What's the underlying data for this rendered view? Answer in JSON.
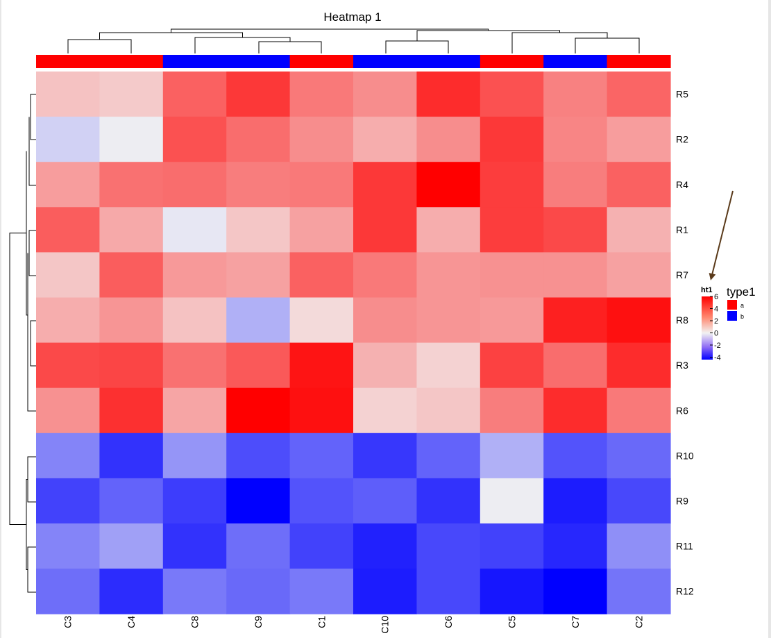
{
  "chart_data": {
    "type": "heatmap",
    "title": "Heatmap 1",
    "columns": [
      "C3",
      "C4",
      "C8",
      "C9",
      "C1",
      "C10",
      "C6",
      "C5",
      "C7",
      "C2"
    ],
    "rows": [
      "R5",
      "R2",
      "R4",
      "R1",
      "R7",
      "R8",
      "R3",
      "R6",
      "R10",
      "R9",
      "R11",
      "R12"
    ],
    "column_type": [
      "a",
      "a",
      "b",
      "b",
      "a",
      "b",
      "b",
      "a",
      "b",
      "a"
    ],
    "values": [
      [
        1.2,
        1.0,
        3.6,
        4.6,
        3.0,
        2.5,
        4.9,
        4.0,
        2.8,
        3.5
      ],
      [
        -0.6,
        -0.1,
        4.0,
        3.3,
        2.5,
        1.7,
        2.5,
        4.6,
        2.7,
        2.1
      ],
      [
        2.1,
        3.2,
        3.3,
        2.9,
        3.0,
        4.6,
        6.0,
        4.5,
        2.9,
        3.6
      ],
      [
        3.7,
        1.8,
        -0.2,
        1.1,
        2.0,
        4.6,
        1.7,
        4.5,
        4.2,
        1.6
      ],
      [
        1.1,
        3.7,
        2.2,
        2.0,
        3.6,
        3.0,
        2.3,
        2.4,
        2.4,
        2.0
      ],
      [
        1.7,
        2.3,
        1.2,
        -1.2,
        0.6,
        2.5,
        2.3,
        2.2,
        5.2,
        5.6
      ],
      [
        4.2,
        4.3,
        3.2,
        3.8,
        5.5,
        1.6,
        0.8,
        4.4,
        3.3,
        4.9
      ],
      [
        2.4,
        4.8,
        1.9,
        6.0,
        5.6,
        0.8,
        1.1,
        2.9,
        4.9,
        3.0
      ],
      [
        -2.0,
        -3.5,
        -1.7,
        -3.0,
        -2.6,
        -3.4,
        -2.6,
        -1.2,
        -2.9,
        -2.5
      ],
      [
        -3.2,
        -2.6,
        -3.3,
        -4.4,
        -2.9,
        -2.7,
        -3.5,
        -0.1,
        -3.9,
        -3.1
      ],
      [
        -2.0,
        -1.5,
        -3.5,
        -2.4,
        -3.2,
        -3.8,
        -3.1,
        -3.2,
        -3.7,
        -1.8
      ],
      [
        -2.4,
        -3.6,
        -2.2,
        -2.5,
        -2.2,
        -3.9,
        -3.1,
        -4.0,
        -4.4,
        -2.3
      ]
    ],
    "color_scale": {
      "min": -4.4,
      "mid": 0,
      "max": 6,
      "low": "#0000ff",
      "mid_color": "#f2f2f2",
      "high": "#ff0000"
    },
    "legends": {
      "ht1": {
        "title": "ht1",
        "ticks": [
          "6",
          "4",
          "2",
          "0",
          "-2",
          "-4"
        ],
        "tick_values": [
          6,
          4,
          2,
          0,
          -2,
          -4
        ]
      },
      "type1": {
        "title": "type1",
        "items": [
          {
            "label": "a",
            "color": "#ff0000"
          },
          {
            "label": "b",
            "color": "#0000ff"
          }
        ]
      }
    },
    "annotation": "arrow pointing to ht1 legend",
    "arrow_color": "#5a3a1a"
  }
}
